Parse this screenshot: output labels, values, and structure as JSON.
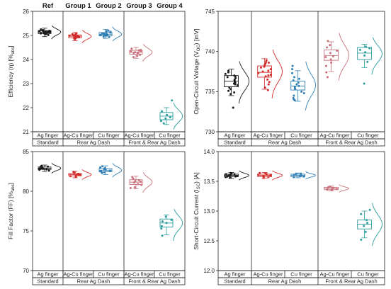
{
  "groups_header": [
    "Ref",
    "Group 1",
    "Group 2",
    "Group 3",
    "Group 4"
  ],
  "colors": {
    "ag": "#1a1a1a",
    "agcu_std": "#d42a2a",
    "cu_std": "#2f7fb5",
    "agcu_fr": "#c9707a",
    "cu_fr": "#2a9c9c"
  },
  "chart_data": [
    {
      "type": "box",
      "id": "eff",
      "ylabel_main": "Efficiency (η) [%",
      "ylabel_sub": "abs",
      "ylabel_end": "]",
      "ylim": [
        21,
        26
      ],
      "yticks": [
        "21",
        "22",
        "23",
        "24",
        "25",
        "26"
      ],
      "categories": [
        "Ag finger",
        "Ag-Cu finger",
        "Cu finger",
        "Ag-Cu finger",
        "Cu finger"
      ],
      "groups": [
        {
          "label": "Standard",
          "span": 1
        },
        {
          "label": "Rear Ag Dash",
          "span": 2
        },
        {
          "label": "Front & Rear Ag Dash",
          "span": 2
        }
      ],
      "series": [
        {
          "color_key": "ag",
          "q1": 25.08,
          "median": 25.14,
          "q3": 25.2,
          "mean": 25.14,
          "whisker_low": 24.95,
          "whisker_high": 25.3,
          "points": [
            25.12,
            25.18,
            25.05,
            25.22,
            25.1,
            25.15,
            25.08,
            25.2,
            25.13,
            25.17,
            25.02,
            25.25,
            25.11,
            25.16,
            25.09,
            25.19,
            25.14,
            25.06,
            25.21,
            25.13
          ]
        },
        {
          "color_key": "agcu_std",
          "q1": 24.9,
          "median": 24.97,
          "q3": 25.02,
          "mean": 24.96,
          "whisker_low": 24.78,
          "whisker_high": 25.12,
          "points": [
            24.95,
            25.0,
            24.88,
            25.05,
            24.92,
            24.98,
            24.85,
            25.03,
            24.94,
            24.99,
            24.9,
            25.08,
            24.96,
            24.93,
            25.01,
            24.87
          ]
        },
        {
          "color_key": "cu_std",
          "q1": 24.98,
          "median": 25.05,
          "q3": 25.12,
          "mean": 25.05,
          "whisker_low": 24.88,
          "whisker_high": 25.25,
          "points": [
            25.02,
            25.08,
            24.95,
            25.15,
            25.04,
            25.1,
            24.99,
            25.18,
            25.06,
            25.01,
            25.12,
            24.93,
            25.07,
            25.2,
            25.03
          ]
        },
        {
          "color_key": "agcu_fr",
          "q1": 24.22,
          "median": 24.3,
          "q3": 24.38,
          "mean": 24.3,
          "whisker_low": 24.05,
          "whisker_high": 24.5,
          "points": [
            24.3,
            24.25,
            24.4,
            24.15,
            24.35,
            24.28,
            24.45,
            24.2,
            24.33,
            24.1,
            24.38,
            24.27
          ]
        },
        {
          "color_key": "cu_fr",
          "q1": 21.5,
          "median": 21.65,
          "q3": 21.8,
          "mean": 21.65,
          "whisker_low": 21.3,
          "whisker_high": 22.0,
          "points": [
            21.6,
            21.7,
            21.45,
            21.85,
            21.35,
            22.3,
            21.55
          ]
        }
      ]
    },
    {
      "type": "box",
      "id": "voc",
      "ylabel_main": "Open-Circuit Voltage (V",
      "ylabel_sub": "OC",
      "ylabel_end": ") [mV]",
      "ylim": [
        730,
        745
      ],
      "yticks": [
        "730",
        "735",
        "740",
        "745"
      ],
      "categories": [
        "Ag finger",
        "Ag-Cu finger",
        "Cu finger",
        "Ag-Cu finger",
        "Cu finger"
      ],
      "groups": [
        {
          "label": "Standard",
          "span": 1
        },
        {
          "label": "Rear Ag Dash",
          "span": 2
        },
        {
          "label": "Front & Rear Ag Dash",
          "span": 2
        }
      ],
      "series": [
        {
          "color_key": "ag",
          "q1": 735.6,
          "median": 736.3,
          "q3": 737.0,
          "mean": 736.3,
          "whisker_low": 734.5,
          "whisker_high": 737.8,
          "points": [
            736.2,
            735.8,
            736.9,
            735.1,
            737.4,
            736.5,
            734.7,
            736.0,
            737.2,
            735.5,
            736.7,
            733.0,
            736.1,
            737.6,
            735.9,
            736.4,
            734.9,
            736.8,
            735.3,
            737.0
          ]
        },
        {
          "color_key": "agcu_std",
          "q1": 736.8,
          "median": 737.4,
          "q3": 738.2,
          "mean": 737.5,
          "whisker_low": 735.3,
          "whisker_high": 739.1,
          "points": [
            737.3,
            738.0,
            736.5,
            738.6,
            737.1,
            735.5,
            738.9,
            737.8,
            736.9,
            738.3,
            737.5,
            735.9,
            738.7,
            737.0,
            736.2,
            738.1,
            737.6,
            735.2,
            738.5
          ]
        },
        {
          "color_key": "cu_std",
          "q1": 735.2,
          "median": 735.7,
          "q3": 736.3,
          "mean": 735.8,
          "whisker_low": 733.8,
          "whisker_high": 737.6,
          "points": [
            735.6,
            736.1,
            734.8,
            736.8,
            735.3,
            733.9,
            737.3,
            735.9,
            734.5,
            736.4,
            735.0,
            737.8,
            735.7,
            734.2,
            736.6,
            735.4,
            738.2,
            734.0
          ]
        },
        {
          "color_key": "agcu_fr",
          "q1": 738.9,
          "median": 739.5,
          "q3": 740.2,
          "mean": 739.5,
          "whisker_low": 737.5,
          "whisker_high": 741.2,
          "points": [
            739.4,
            740.1,
            738.6,
            740.8,
            739.0,
            741.3,
            737.4,
            739.8,
            738.2,
            740.5,
            739.3,
            736.8
          ]
        },
        {
          "color_key": "cu_fr",
          "q1": 739.0,
          "median": 739.8,
          "q3": 740.5,
          "mean": 739.7,
          "whisker_low": 738.0,
          "whisker_high": 740.9,
          "points": [
            739.5,
            740.4,
            738.7,
            740.6,
            736.0,
            739.9,
            740.2
          ]
        }
      ]
    },
    {
      "type": "box",
      "id": "ff",
      "ylabel_main": "Fill Factor (FF) [%",
      "ylabel_sub": "abs",
      "ylabel_end": "]",
      "ylim": [
        70,
        85
      ],
      "yticks": [
        "70",
        "75",
        "80",
        "85"
      ],
      "categories": [
        "Ag finger",
        "Ag-Cu finger",
        "Cu finger",
        "Ag-Cu finger",
        "Cu finger"
      ],
      "groups": [
        {
          "label": "Standard",
          "span": 1
        },
        {
          "label": "Rear Ag Dash",
          "span": 2
        },
        {
          "label": "Front & Rear Ag Dash",
          "span": 2
        }
      ],
      "series": [
        {
          "color_key": "ag",
          "q1": 82.75,
          "median": 82.9,
          "q3": 83.05,
          "mean": 82.9,
          "whisker_low": 82.5,
          "whisker_high": 83.3,
          "points": [
            82.9,
            83.0,
            82.8,
            83.1,
            82.7,
            82.95,
            82.85,
            83.15,
            82.6,
            83.05,
            82.9,
            82.75,
            83.2,
            82.88
          ]
        },
        {
          "color_key": "agcu_std",
          "q1": 81.95,
          "median": 82.1,
          "q3": 82.25,
          "mean": 82.1,
          "whisker_low": 81.7,
          "whisker_high": 82.5,
          "points": [
            82.1,
            82.2,
            81.9,
            82.35,
            81.8,
            82.05,
            82.28,
            81.95,
            82.15,
            82.45,
            82.0
          ]
        },
        {
          "color_key": "cu_std",
          "q1": 82.45,
          "median": 82.65,
          "q3": 82.85,
          "mean": 82.65,
          "whisker_low": 82.1,
          "whisker_high": 83.2,
          "points": [
            82.6,
            82.8,
            82.4,
            83.0,
            82.5,
            82.7,
            83.15,
            82.3,
            82.9,
            82.55
          ]
        },
        {
          "color_key": "agcu_fr",
          "q1": 80.85,
          "median": 81.15,
          "q3": 81.45,
          "mean": 81.15,
          "whisker_low": 80.3,
          "whisker_high": 81.9,
          "points": [
            81.1,
            81.4,
            80.8,
            81.6,
            80.5,
            81.2,
            81.8,
            80.9,
            81.3,
            80.4
          ]
        },
        {
          "color_key": "cu_fr",
          "q1": 75.5,
          "median": 76.0,
          "q3": 76.5,
          "mean": 76.0,
          "whisker_low": 74.5,
          "whisker_high": 77.0,
          "points": [
            76.0,
            76.4,
            75.6,
            76.8,
            74.4,
            75.3,
            76.2
          ]
        }
      ]
    },
    {
      "type": "box",
      "id": "isc",
      "ylabel_main": "Short-Circuit Current (I",
      "ylabel_sub": "SC",
      "ylabel_end": ") [A]",
      "ylim": [
        12.0,
        14.0
      ],
      "yticks": [
        "12.0",
        "12.5",
        "13.0",
        "13.5",
        "14.0"
      ],
      "categories": [
        "Ag finger",
        "Ag-Cu finger",
        "Cu finger",
        "Ag-Cu finger",
        "Cu finger"
      ],
      "groups": [
        {
          "label": "Standard",
          "span": 1
        },
        {
          "label": "Rear Ag Dash",
          "span": 2
        },
        {
          "label": "Front & Rear Ag Dash",
          "span": 2
        }
      ],
      "series": [
        {
          "color_key": "ag",
          "q1": 13.58,
          "median": 13.6,
          "q3": 13.62,
          "mean": 13.6,
          "whisker_low": 13.55,
          "whisker_high": 13.65,
          "points": [
            13.6,
            13.62,
            13.58,
            13.64,
            13.57,
            13.61,
            13.59,
            13.63,
            13.56,
            13.6,
            13.62,
            13.58
          ]
        },
        {
          "color_key": "agcu_std",
          "q1": 13.58,
          "median": 13.6,
          "q3": 13.62,
          "mean": 13.6,
          "whisker_low": 13.55,
          "whisker_high": 13.65,
          "points": [
            13.6,
            13.62,
            13.57,
            13.63,
            13.59,
            13.61,
            13.56,
            13.64,
            13.6
          ]
        },
        {
          "color_key": "cu_std",
          "q1": 13.58,
          "median": 13.6,
          "q3": 13.62,
          "mean": 13.6,
          "whisker_low": 13.56,
          "whisker_high": 13.64,
          "points": [
            13.6,
            13.61,
            13.58,
            13.63,
            13.59,
            13.62,
            13.57
          ]
        },
        {
          "color_key": "agcu_fr",
          "q1": 13.36,
          "median": 13.38,
          "q3": 13.4,
          "mean": 13.38,
          "whisker_low": 13.34,
          "whisker_high": 13.42,
          "points": [
            13.38,
            13.4,
            13.36,
            13.41,
            13.37,
            13.39,
            13.35
          ]
        },
        {
          "color_key": "cu_fr",
          "q1": 12.7,
          "median": 12.78,
          "q3": 12.85,
          "mean": 12.78,
          "whisker_low": 12.55,
          "whisker_high": 13.0,
          "points": [
            12.75,
            12.85,
            12.65,
            12.95,
            12.52,
            12.8,
            13.02
          ]
        }
      ]
    }
  ]
}
